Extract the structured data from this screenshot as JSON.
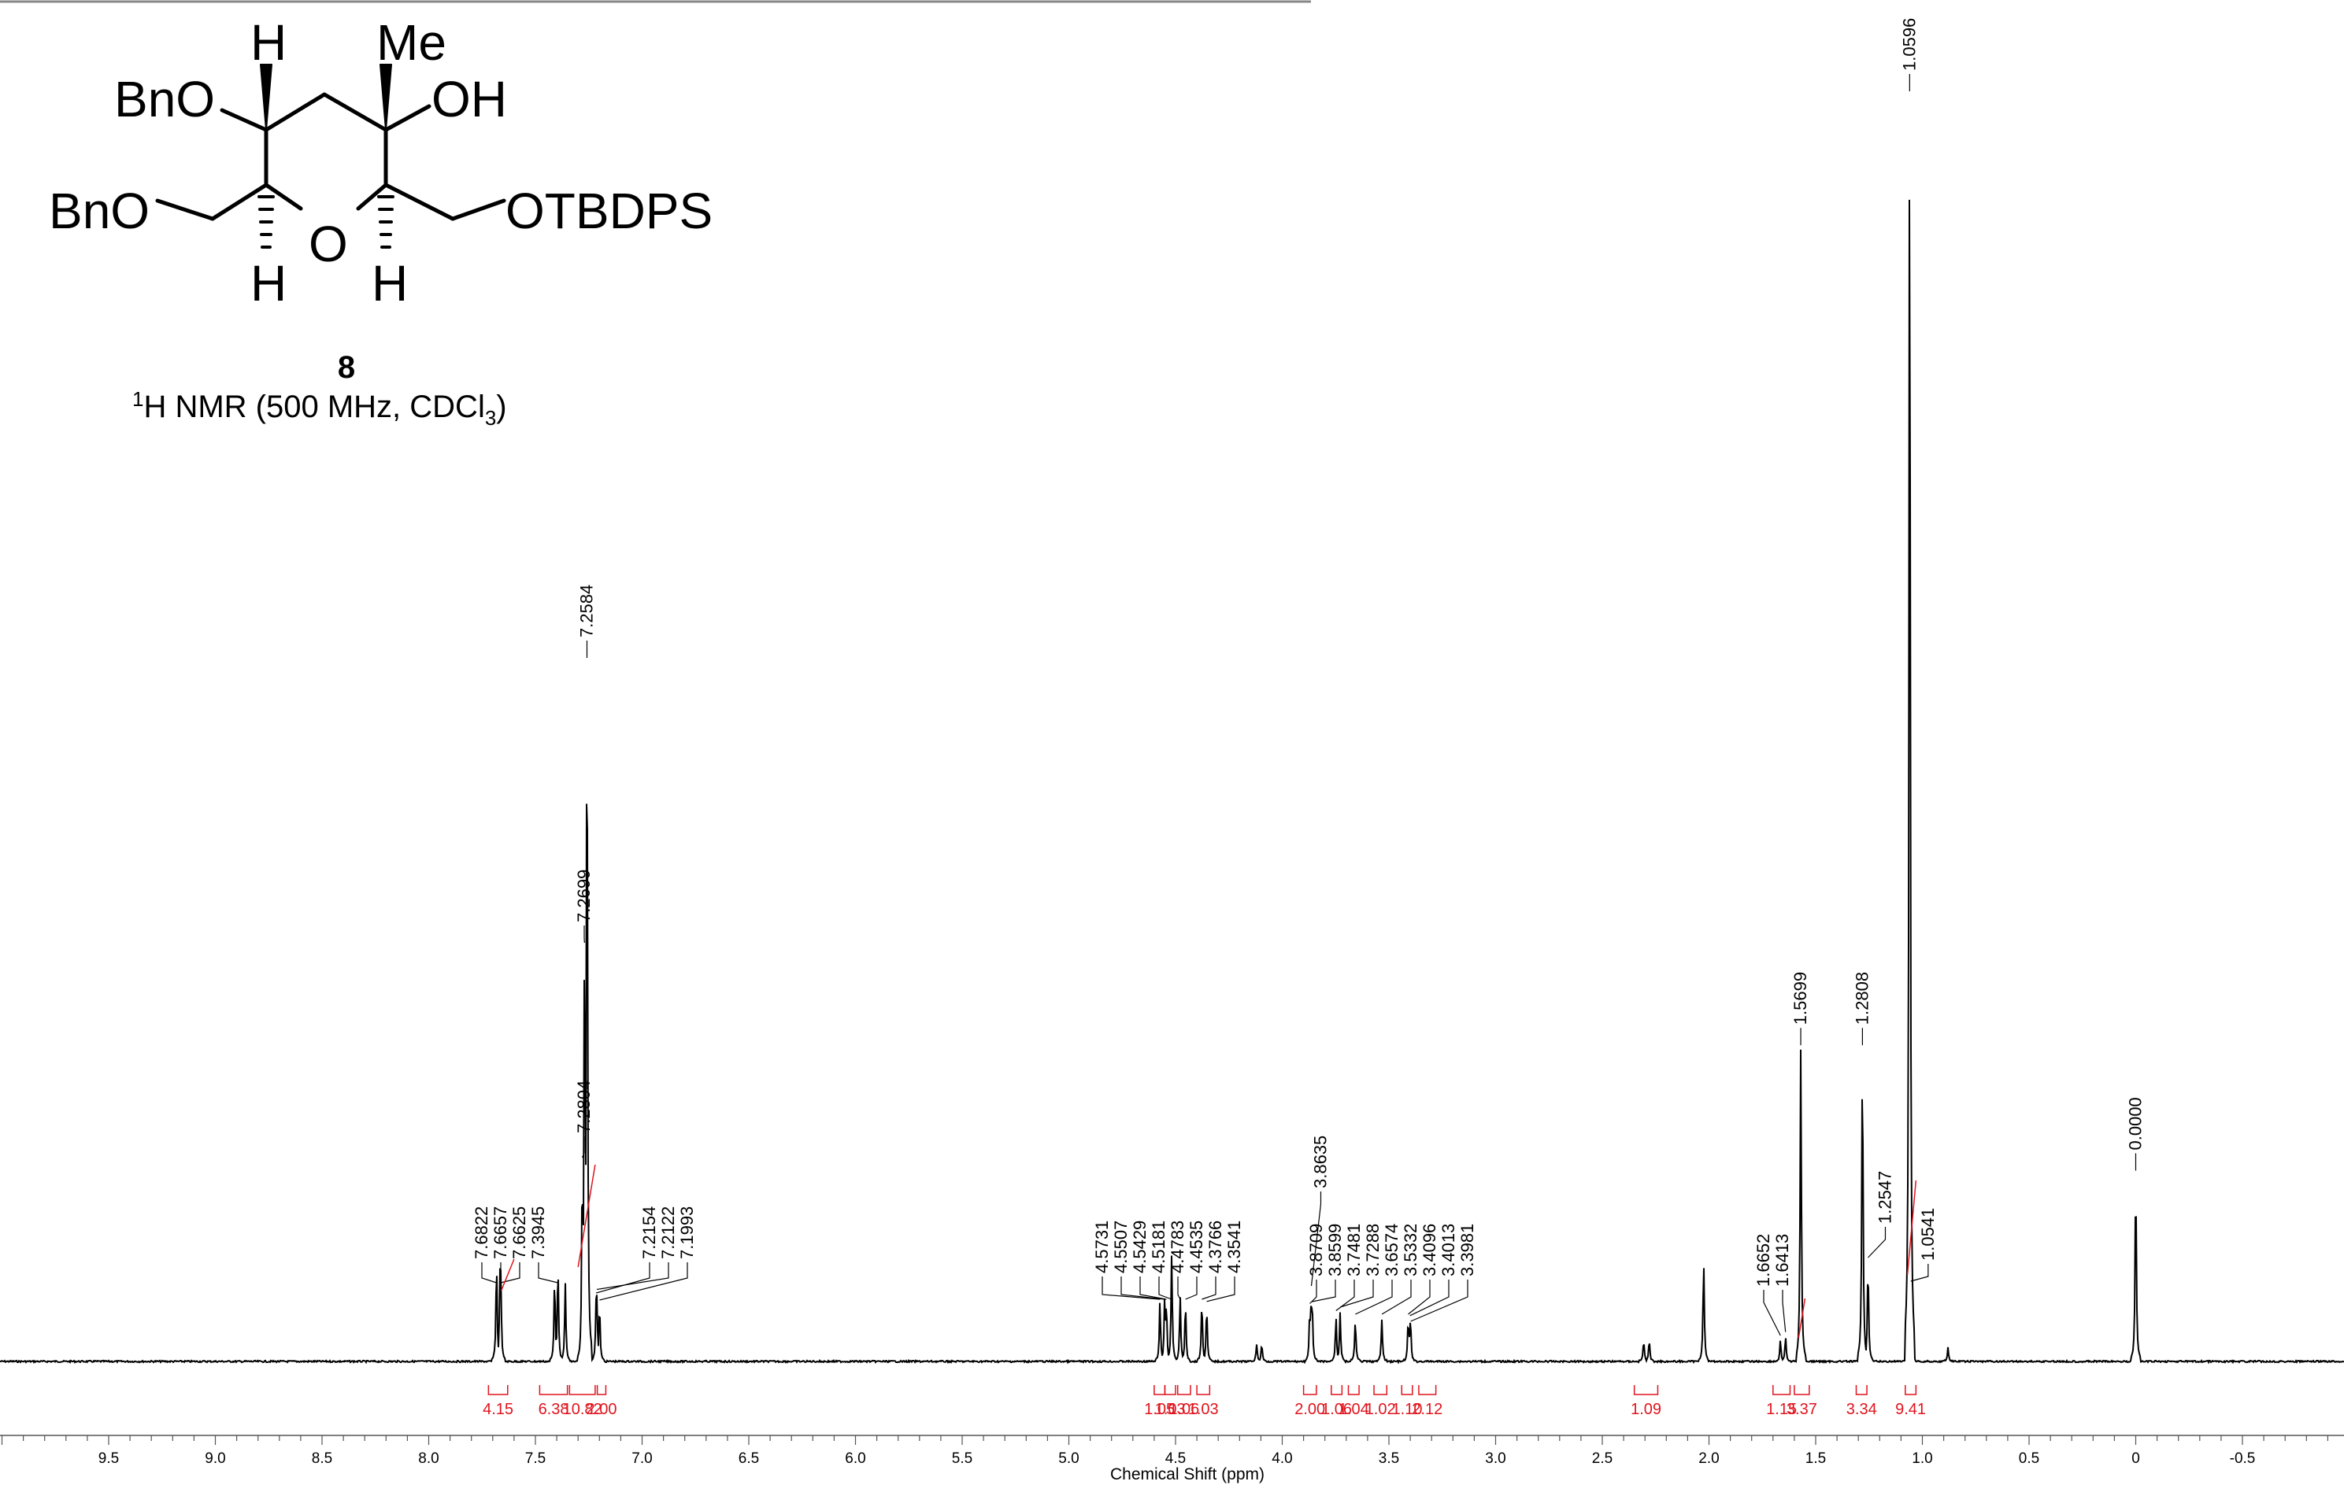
{
  "figure": {
    "compound_number": "8",
    "caption_prefix": "1",
    "caption_main": "H NMR (500 MHz, CDCl",
    "caption_sub": "3",
    "caption_end": ")"
  },
  "structure": {
    "atoms": {
      "bno_top": "BnO",
      "bno_bottom": "BnO",
      "h_top": "H",
      "me": "Me",
      "oh": "OH",
      "ring_o": "O",
      "h_left": "H",
      "h_right": "H",
      "otbdps": "OTBDPS"
    }
  },
  "chart_data": {
    "type": "line",
    "xlabel": "Chemical Shift (ppm)",
    "ylabel": "",
    "xlim": [
      10.05,
      -0.93
    ],
    "x_reversed": true,
    "ticks": [
      "9.5",
      "9.0",
      "8.5",
      "8.0",
      "7.5",
      "7.0",
      "6.5",
      "6.0",
      "5.5",
      "5.0",
      "4.5",
      "4.0",
      "3.5",
      "3.0",
      "2.5",
      "2.0",
      "1.5",
      "1.0",
      "0.5",
      "0",
      "-0.5"
    ],
    "colors": {
      "spectrum": "#000000",
      "integral": "#e0141e",
      "axis": "#555555"
    },
    "peaks": [
      {
        "ppm": 7.6822,
        "h": 0.141
      },
      {
        "ppm": 7.6657,
        "h": 0.132
      },
      {
        "ppm": 7.6625,
        "h": 0.13
      },
      {
        "ppm": 7.41,
        "h": 0.12
      },
      {
        "ppm": 7.3945,
        "h": 0.138
      },
      {
        "ppm": 7.36,
        "h": 0.11
      },
      {
        "ppm": 7.2804,
        "h": 0.285
      },
      {
        "ppm": 7.2699,
        "h": 0.621
      },
      {
        "ppm": 7.2584,
        "h": 1.0
      },
      {
        "ppm": 7.2154,
        "h": 0.09
      },
      {
        "ppm": 7.2122,
        "h": 0.095
      },
      {
        "ppm": 7.1993,
        "h": 0.08
      },
      {
        "ppm": 4.5731,
        "h": 0.085
      },
      {
        "ppm": 4.5507,
        "h": 0.095
      },
      {
        "ppm": 4.5429,
        "h": 0.088
      },
      {
        "ppm": 4.5181,
        "h": 0.15
      },
      {
        "ppm": 4.4783,
        "h": 0.092
      },
      {
        "ppm": 4.4535,
        "h": 0.082
      },
      {
        "ppm": 4.3766,
        "h": 0.086
      },
      {
        "ppm": 4.3541,
        "h": 0.078
      },
      {
        "ppm": 4.12,
        "h": 0.025
      },
      {
        "ppm": 4.096,
        "h": 0.025
      },
      {
        "ppm": 3.8709,
        "h": 0.075
      },
      {
        "ppm": 3.8635,
        "h": 0.1
      },
      {
        "ppm": 3.8599,
        "h": 0.09
      },
      {
        "ppm": 3.7481,
        "h": 0.065
      },
      {
        "ppm": 3.7288,
        "h": 0.07
      },
      {
        "ppm": 3.6574,
        "h": 0.06
      },
      {
        "ppm": 3.5332,
        "h": 0.06
      },
      {
        "ppm": 3.4096,
        "h": 0.06
      },
      {
        "ppm": 3.4013,
        "h": 0.058
      },
      {
        "ppm": 3.3981,
        "h": 0.05
      },
      {
        "ppm": 2.306,
        "h": 0.03
      },
      {
        "ppm": 2.28,
        "h": 0.03
      },
      {
        "ppm": 2.025,
        "h": 0.145
      },
      {
        "ppm": 1.6652,
        "h": 0.03
      },
      {
        "ppm": 1.6413,
        "h": 0.035
      },
      {
        "ppm": 1.5699,
        "h": 0.442
      },
      {
        "ppm": 1.2808,
        "h": 0.442
      },
      {
        "ppm": 1.2547,
        "h": 0.14
      },
      {
        "ppm": 1.0596,
        "h": 1.88
      },
      {
        "ppm": 1.0541,
        "h": 0.12
      },
      {
        "ppm": 0.88,
        "h": 0.02
      },
      {
        "ppm": 0.0,
        "h": 0.265
      }
    ],
    "peak_labels": [
      {
        "text": "7.6822",
        "ppm": 7.6822,
        "group": "ar_left"
      },
      {
        "text": "7.6657",
        "ppm": 7.6657,
        "group": "ar_left"
      },
      {
        "text": "7.6625",
        "ppm": 7.6625,
        "group": "ar_left"
      },
      {
        "text": "7.3945",
        "ppm": 7.3945,
        "group": "ar_left"
      },
      {
        "text": "7.2804",
        "ppm": 7.2804,
        "group": "ar_mid"
      },
      {
        "text": "7.2699",
        "ppm": 7.2699,
        "group": "ar_tall"
      },
      {
        "text": "7.2584",
        "ppm": 7.2584,
        "group": "ar_top"
      },
      {
        "text": "7.2154",
        "ppm": 7.2154,
        "group": "ar_right"
      },
      {
        "text": "7.2122",
        "ppm": 7.2122,
        "group": "ar_right"
      },
      {
        "text": "7.1993",
        "ppm": 7.1993,
        "group": "ar_right"
      },
      {
        "text": "4.5731",
        "ppm": 4.5731,
        "group": "m45"
      },
      {
        "text": "4.5507",
        "ppm": 4.5507,
        "group": "m45"
      },
      {
        "text": "4.5429",
        "ppm": 4.5429,
        "group": "m45"
      },
      {
        "text": "4.5181",
        "ppm": 4.5181,
        "group": "m45"
      },
      {
        "text": "4.4783",
        "ppm": 4.4783,
        "group": "m45"
      },
      {
        "text": "4.4535",
        "ppm": 4.4535,
        "group": "m45"
      },
      {
        "text": "4.3766",
        "ppm": 4.3766,
        "group": "m45"
      },
      {
        "text": "4.3541",
        "ppm": 4.3541,
        "group": "m45"
      },
      {
        "text": "3.8709",
        "ppm": 3.8709,
        "group": "m38"
      },
      {
        "text": "3.8635",
        "ppm": 3.8635,
        "group": "m38_top"
      },
      {
        "text": "3.8599",
        "ppm": 3.8599,
        "group": "m38"
      },
      {
        "text": "3.7481",
        "ppm": 3.7481,
        "group": "m38"
      },
      {
        "text": "3.7288",
        "ppm": 3.7288,
        "group": "m38"
      },
      {
        "text": "3.6574",
        "ppm": 3.6574,
        "group": "m38"
      },
      {
        "text": "3.5332",
        "ppm": 3.5332,
        "group": "m38"
      },
      {
        "text": "3.4096",
        "ppm": 3.4096,
        "group": "m38"
      },
      {
        "text": "3.4013",
        "ppm": 3.4013,
        "group": "m38"
      },
      {
        "text": "3.3981",
        "ppm": 3.3981,
        "group": "m38"
      },
      {
        "text": "1.6652",
        "ppm": 1.6652,
        "group": "m16"
      },
      {
        "text": "1.6413",
        "ppm": 1.6413,
        "group": "m16"
      },
      {
        "text": "1.5699",
        "ppm": 1.5699,
        "group": "single"
      },
      {
        "text": "1.2808",
        "ppm": 1.2808,
        "group": "single"
      },
      {
        "text": "1.2547",
        "ppm": 1.2547,
        "group": "mid12"
      },
      {
        "text": "1.0596",
        "ppm": 1.0596,
        "group": "top10"
      },
      {
        "text": "1.0541",
        "ppm": 1.0541,
        "group": "mid10"
      },
      {
        "text": "0.0000",
        "ppm": 0.0,
        "group": "single"
      }
    ],
    "integrals": [
      {
        "value": "4.15",
        "from": 7.72,
        "to": 7.63
      },
      {
        "value": "6.38",
        "from": 7.48,
        "to": 7.35
      },
      {
        "value": "10.82",
        "from": 7.34,
        "to": 7.22
      },
      {
        "value": "2.00",
        "from": 7.21,
        "to": 7.17
      },
      {
        "value": "1.05",
        "from": 4.6,
        "to": 4.55
      },
      {
        "value": "1.03",
        "from": 4.55,
        "to": 4.5
      },
      {
        "value": "1.06",
        "from": 4.49,
        "to": 4.43
      },
      {
        "value": "1.03",
        "from": 4.4,
        "to": 4.34
      },
      {
        "value": "2.00",
        "from": 3.9,
        "to": 3.84
      },
      {
        "value": "1.06",
        "from": 3.77,
        "to": 3.72
      },
      {
        "value": "1.04",
        "from": 3.69,
        "to": 3.64
      },
      {
        "value": "1.02",
        "from": 3.57,
        "to": 3.51
      },
      {
        "value": "1.10",
        "from": 3.44,
        "to": 3.39
      },
      {
        "value": "2.12",
        "from": 3.36,
        "to": 3.28
      },
      {
        "value": "1.09",
        "from": 2.35,
        "to": 2.24
      },
      {
        "value": "1.15",
        "from": 1.7,
        "to": 1.62
      },
      {
        "value": "3.37",
        "from": 1.6,
        "to": 1.53
      },
      {
        "value": "3.34",
        "from": 1.31,
        "to": 1.26
      },
      {
        "value": "9.41",
        "from": 1.08,
        "to": 1.03
      }
    ]
  }
}
